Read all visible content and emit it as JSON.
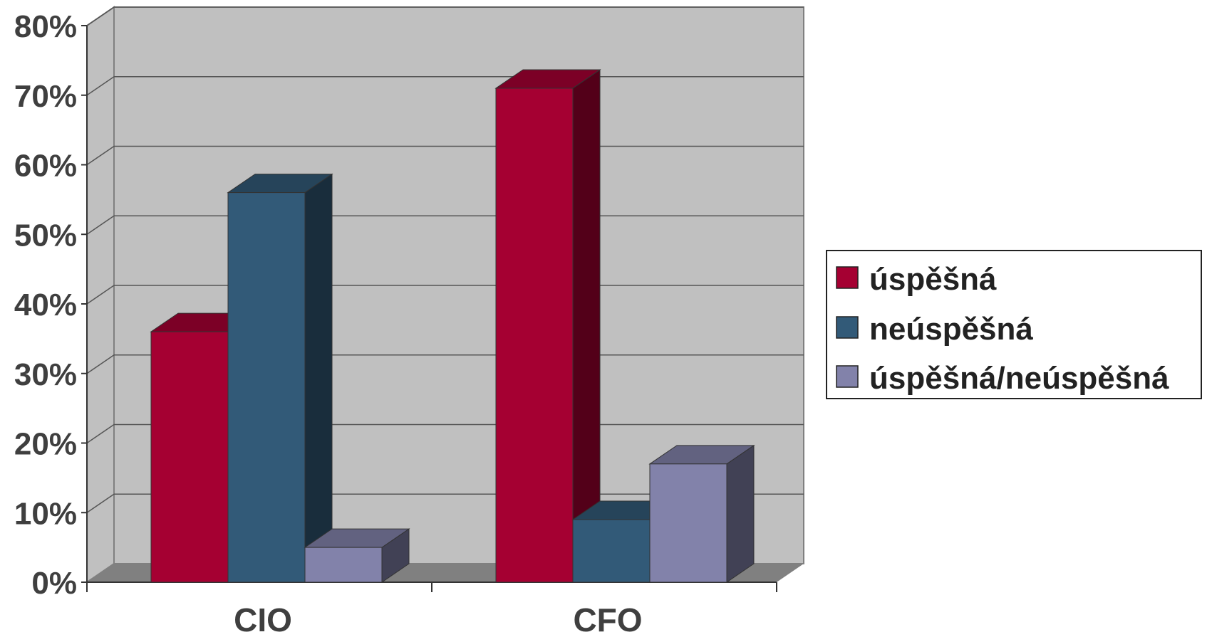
{
  "chart_data": {
    "type": "bar",
    "categories": [
      "CIO",
      "CFO"
    ],
    "series": [
      {
        "name": "úspěšná",
        "values": [
          36,
          71
        ],
        "color": "#a50032"
      },
      {
        "name": "neúspěšná",
        "values": [
          56,
          9
        ],
        "color": "#325a78"
      },
      {
        "name": "úspěšná/neúspěšná",
        "values": [
          5,
          17
        ],
        "color": "#8282aa"
      }
    ],
    "ylim": [
      0,
      80
    ],
    "ytick_labels": [
      "0%",
      "10%",
      "20%",
      "30%",
      "40%",
      "50%",
      "60%",
      "70%",
      "80%"
    ],
    "grid": true,
    "legend_position": "right",
    "style": "3d-clustered-column"
  }
}
